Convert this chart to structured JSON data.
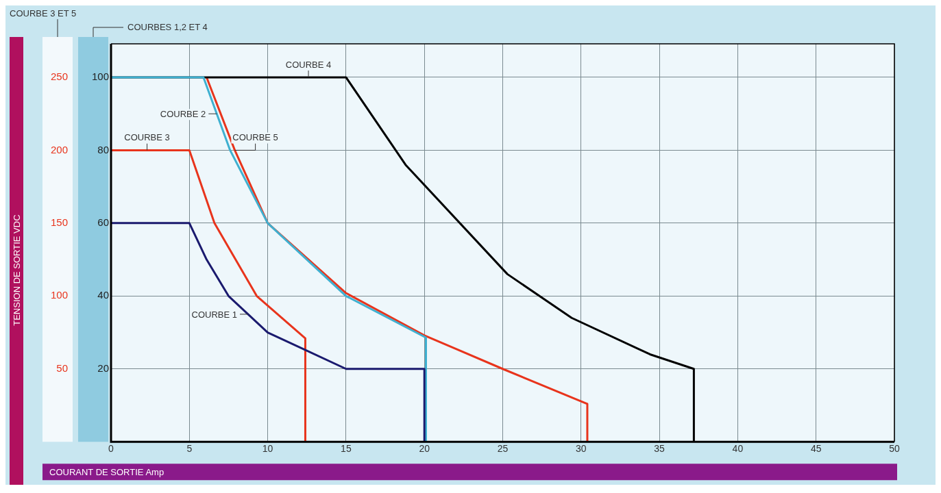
{
  "chart_data": {
    "type": "line",
    "xlabel": "COURANT DE SORTIE Amp",
    "y2label": "TENSION DE SORTIE VDC",
    "xlim": [
      0,
      50
    ],
    "xticks": [
      0,
      5,
      10,
      15,
      20,
      25,
      30,
      35,
      40,
      45,
      50
    ],
    "ylim": [
      0,
      109.2
    ],
    "yticks": [
      20,
      40,
      60,
      80,
      100
    ],
    "y2lim": [
      0,
      273
    ],
    "y2ticks": [
      50,
      100,
      150,
      200,
      250
    ],
    "grid": true,
    "legend": false,
    "marker": "none",
    "line_style": "solid",
    "series": [
      {
        "color": "#1a1a6e",
        "x": [
          0,
          5,
          6.1,
          7.5,
          10,
          15,
          20,
          20
        ],
        "values": [
          60,
          60,
          50,
          40,
          30,
          20,
          20,
          0
        ]
      },
      {
        "color": "#3fb0d0",
        "x": [
          0,
          5.9,
          7.6,
          10,
          15,
          20.1,
          20.1
        ],
        "values": [
          100,
          100,
          80,
          60,
          40,
          28.6,
          0
        ]
      },
      {
        "color": "#e8341c",
        "axis": "y2",
        "x": [
          0,
          5,
          6.6,
          9.3,
          12.4,
          12.4
        ],
        "values": [
          200,
          200,
          150,
          100,
          71,
          0
        ]
      },
      {
        "color": "#000000",
        "x": [
          0,
          15,
          18.8,
          25.3,
          29.4,
          34.4,
          37.2,
          37.2
        ],
        "values": [
          100,
          100,
          76,
          46,
          34,
          24,
          20,
          0
        ]
      },
      {
        "color": "#e8341c",
        "axis": "y2",
        "x": [
          6.1,
          7.9,
          10,
          15,
          20,
          25,
          30.4,
          30.4
        ],
        "values": [
          250,
          200,
          150,
          102,
          73,
          50,
          26,
          0
        ]
      }
    ],
    "annotations": [
      "COURBE 3 ET 5",
      "COURBES 1,2 ET 4",
      {
        "text": "COURBE 1",
        "x": 8.75,
        "y": 35
      },
      {
        "text": "COURBE 2",
        "x": 6.75,
        "y": 90
      },
      {
        "text": "COURBE 3",
        "x": 2.3,
        "y": 80
      },
      {
        "text": "COURBE 4",
        "x": 12.6,
        "y": 100
      },
      {
        "text": "COURBE 5",
        "x": 7.9,
        "y": 80
      }
    ]
  }
}
